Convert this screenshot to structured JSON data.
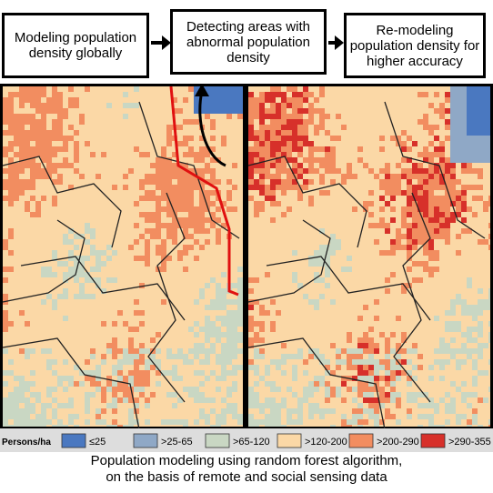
{
  "steps": [
    "Modeling population density globally",
    "Detecting areas with abnormal population density",
    "Re-modeling population density for higher accuracy"
  ],
  "legend": {
    "title": "Persons/ha",
    "items": [
      {
        "label": "≤25",
        "color": "#4a78c0"
      },
      {
        "label": ">25-65",
        "color": "#8fa8c6"
      },
      {
        "label": ">65-120",
        "color": "#c9d7c3"
      },
      {
        "label": ">120-200",
        "color": "#fbd8a6"
      },
      {
        "label": ">200-290",
        "color": "#f28d60"
      },
      {
        "label": ">290-355",
        "color": "#d7302a"
      }
    ]
  },
  "caption": [
    "Population modeling using random forest algorithm,",
    "on the basis of remote and social sensing data"
  ]
}
